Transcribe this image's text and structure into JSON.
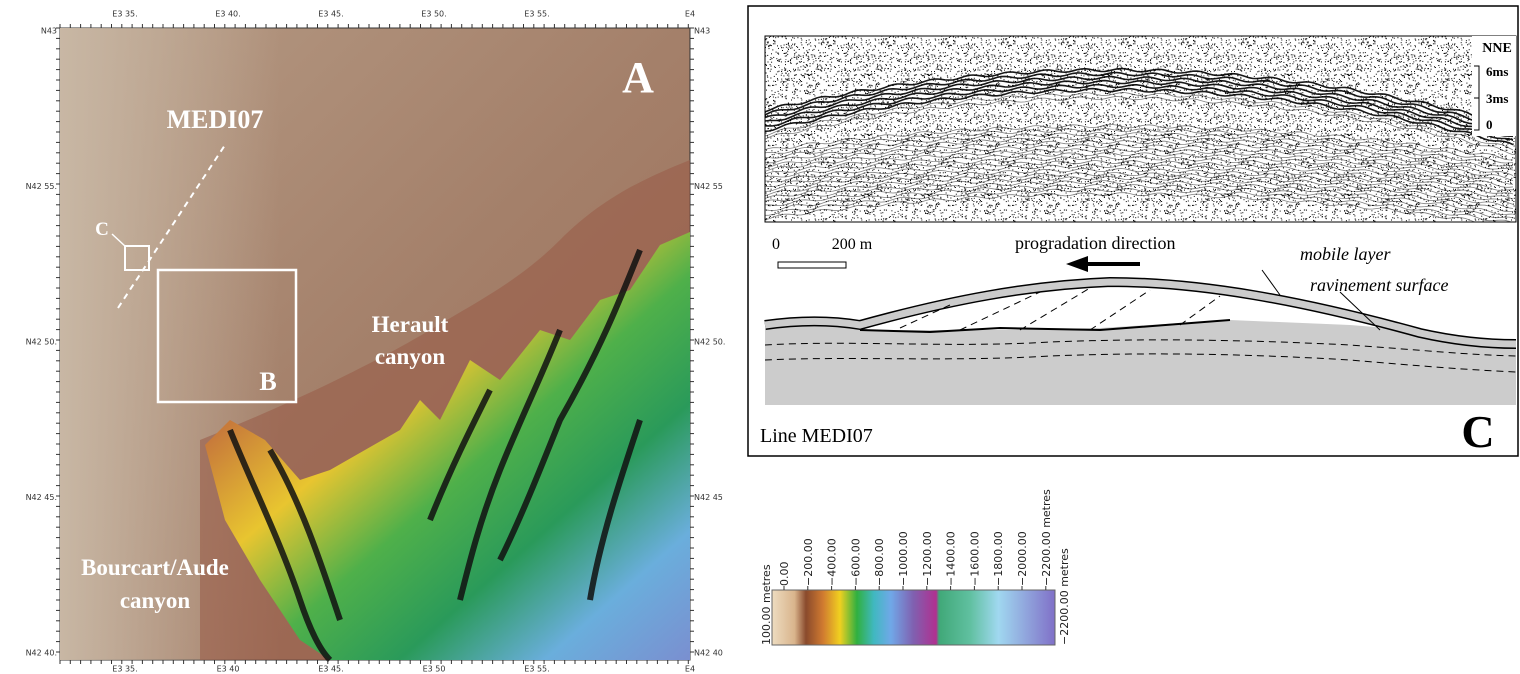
{
  "map": {
    "top_ticks": [
      "E3 35.",
      "E3 40.",
      "E3 45.",
      "E3 50.",
      "E3 55.",
      "E4"
    ],
    "bottom_ticks": [
      "E3 35.",
      "E3 40",
      "E3 45.",
      "E3 50",
      "E3 55.",
      "E4"
    ],
    "left_ticks": [
      "N43",
      "N42 55.",
      "N42 50.",
      "N42 45.",
      "N42 40."
    ],
    "right_ticks": [
      "N43",
      "N42 55",
      "N42 50.",
      "N42 45",
      "N42 40"
    ],
    "panel_label": "A",
    "line_label": "MEDI07",
    "inset_c_label": "C",
    "inset_b_label": "B",
    "herault": [
      "Herault",
      "canyon"
    ],
    "bourcart": [
      "Bourcart/Aude",
      "canyon"
    ]
  },
  "profile": {
    "direction": "NNE",
    "time_scale": [
      "6ms",
      "3ms",
      "0"
    ],
    "scale_start": "0",
    "scale_end": "200 m",
    "arrow_label": "progradation direction",
    "mobile_layer": "mobile layer",
    "ravinement": "ravinement surface",
    "line_name": "Line MEDI07",
    "panel_label": "C"
  },
  "colorbar": {
    "top_label": "100.00 metres",
    "labels": [
      "0.00",
      "−200.00",
      "−400.00",
      "−600.00",
      "−800.00",
      "−1000.00",
      "−1200.00",
      "−1400.00",
      "−1600.00",
      "−1800.00",
      "−2000.00",
      "−2200.00 metres"
    ],
    "bottom_label": "−2200.00 metres"
  }
}
